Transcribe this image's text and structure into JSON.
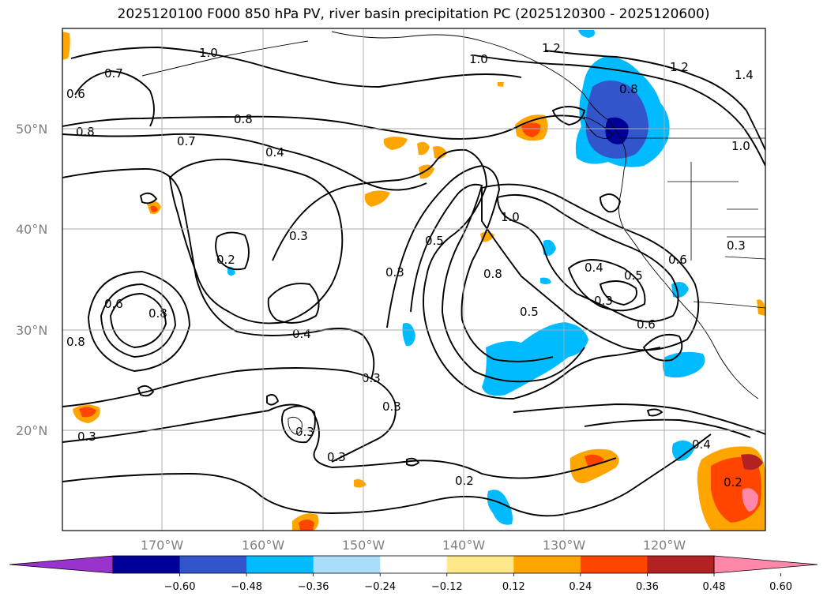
{
  "title": "2025120100 F000 850 hPa PV, river basin precipitation PC (2025120300 - 2025120600)",
  "latitude_labels": [
    "50°N",
    "40°N",
    "30°N",
    "20°N"
  ],
  "longitude_labels": [
    "170°W",
    "160°W",
    "150°W",
    "140°W",
    "130°W",
    "120°W"
  ],
  "contour_labels": [
    "0.6",
    "0.7",
    "1.0",
    "0.8",
    "0.7",
    "0.8",
    "0.4",
    "0.2",
    "0.3",
    "0.5",
    "0.3",
    "0.4",
    "0.3",
    "0.3",
    "0.3",
    "0.3",
    "1.0",
    "1.2",
    "0.8",
    "1.2",
    "1.4",
    "1.0",
    "1.0",
    "0.8",
    "0.5",
    "0.4",
    "0.5",
    "0.3",
    "0.6",
    "0.6",
    "0.3",
    "0.6",
    "0.8",
    "0.8",
    "0.4",
    "0.2",
    "0.2",
    "0.3"
  ],
  "colorbar": {
    "colors": [
      "#9933cc",
      "#000099",
      "#3355cc",
      "#00bbff",
      "#aaddf8",
      "#ffffff",
      "#ffe88a",
      "#ffa500",
      "#ff4500",
      "#b22222",
      "#ff88aa"
    ],
    "tick_labels": [
      "−0.60",
      "−0.48",
      "−0.36",
      "−0.24",
      "−0.12",
      "0.12",
      "0.24",
      "0.36",
      "0.48",
      "0.60"
    ]
  }
}
